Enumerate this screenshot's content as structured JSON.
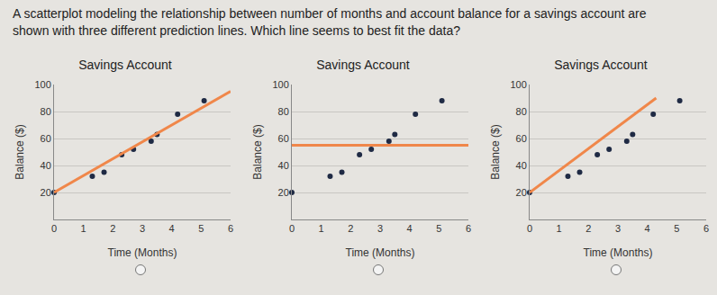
{
  "question": [
    "A scatterplot modeling the relationship between number of months and account balance for a savings account are",
    "shown with three different prediction lines. Which line seems to best fit the data?"
  ],
  "chart_data": [
    {
      "type": "scatter",
      "title": "Savings Account",
      "x_label": "Time (Months)",
      "y_label": "Balance ($)",
      "xlim": [
        0,
        6
      ],
      "xticks": [
        0,
        1,
        2,
        3,
        4,
        5,
        6
      ],
      "ylim": [
        0,
        100
      ],
      "yticks": [
        20,
        40,
        60,
        80,
        100
      ],
      "grid": true,
      "series": [
        {
          "type": "scatter",
          "color": "#1f2a44",
          "marker": "circle",
          "x": [
            0,
            1.3,
            1.7,
            2.3,
            2.7,
            3.3,
            3.5,
            4.2,
            5.1
          ],
          "values": [
            20,
            32,
            35,
            48,
            52,
            58,
            63,
            78,
            88
          ]
        },
        {
          "type": "line",
          "color": "#f0874a",
          "line_style": "solid",
          "x": [
            0,
            6
          ],
          "values": [
            20,
            95
          ]
        }
      ]
    },
    {
      "type": "scatter",
      "title": "Savings Account",
      "x_label": "Time (Months)",
      "y_label": "Balance ($)",
      "xlim": [
        0,
        6
      ],
      "xticks": [
        0,
        1,
        2,
        3,
        4,
        5,
        6
      ],
      "ylim": [
        0,
        100
      ],
      "yticks": [
        20,
        40,
        60,
        80,
        100
      ],
      "grid": true,
      "series": [
        {
          "type": "scatter",
          "color": "#1f2a44",
          "marker": "circle",
          "x": [
            0,
            1.3,
            1.7,
            2.3,
            2.7,
            3.3,
            3.5,
            4.2,
            5.1
          ],
          "values": [
            20,
            32,
            35,
            48,
            52,
            58,
            63,
            78,
            88
          ]
        },
        {
          "type": "line",
          "color": "#f0874a",
          "line_style": "solid",
          "x": [
            0,
            6
          ],
          "values": [
            55,
            55
          ]
        }
      ]
    },
    {
      "type": "scatter",
      "title": "Savings Account",
      "x_label": "Time (Months)",
      "y_label": "Balance ($)",
      "xlim": [
        0,
        6
      ],
      "xticks": [
        0,
        1,
        2,
        3,
        4,
        5,
        6
      ],
      "ylim": [
        0,
        100
      ],
      "yticks": [
        20,
        40,
        60,
        80,
        100
      ],
      "grid": true,
      "series": [
        {
          "type": "scatter",
          "color": "#1f2a44",
          "marker": "circle",
          "x": [
            0,
            1.3,
            1.7,
            2.3,
            2.7,
            3.3,
            3.5,
            4.2,
            5.1
          ],
          "values": [
            20,
            32,
            35,
            48,
            52,
            58,
            63,
            78,
            88
          ]
        },
        {
          "type": "line",
          "color": "#f0874a",
          "line_style": "solid",
          "x": [
            0,
            4.3
          ],
          "values": [
            20,
            90
          ]
        }
      ]
    }
  ]
}
